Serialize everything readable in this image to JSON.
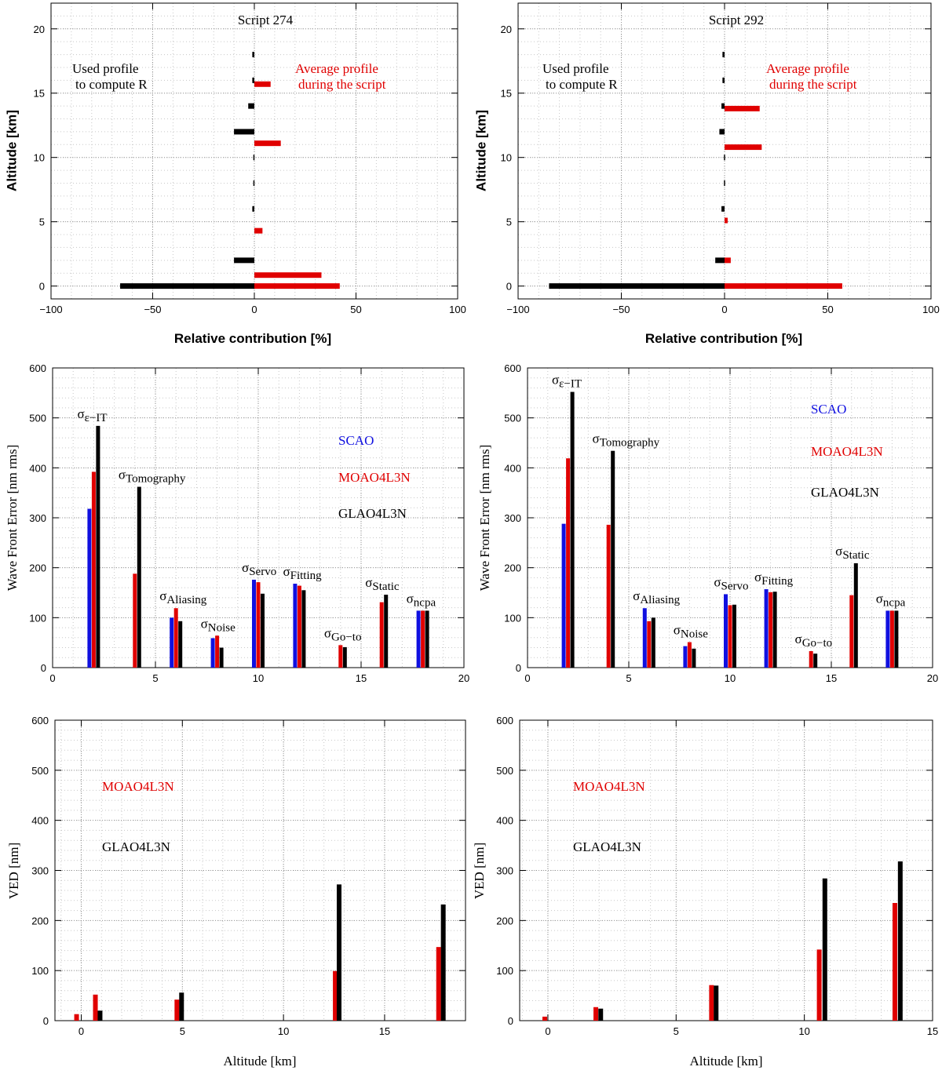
{
  "chart_data": [
    {
      "type": "hbar",
      "title": "Script 274",
      "xlabel": "Relative contribution [%]",
      "ylabel": "Altitude [km]",
      "xlim": [
        -100,
        100
      ],
      "ylim": [
        -1,
        22
      ],
      "xticks": [
        {
          "value": -100,
          "label": "−100"
        },
        {
          "value": -50,
          "label": "−50"
        },
        0,
        50,
        100
      ],
      "yticks": [
        0,
        5,
        10,
        15,
        20
      ],
      "grid": true,
      "minor_grid": {
        "x": 10,
        "y": 1
      },
      "series": [
        {
          "label": [
            "Used profile",
            "to compute R"
          ],
          "color": "#000000",
          "y": [
            0,
            2,
            6,
            8,
            10,
            12,
            14,
            16,
            18
          ],
          "values": [
            -66,
            -10,
            -1,
            -0.5,
            -0.5,
            -10,
            -3,
            -1,
            -1
          ]
        },
        {
          "label": [
            "Average profile",
            "during the script"
          ],
          "color": "#e00000",
          "y": [
            0,
            0.85,
            4.3,
            11.1,
            15.7
          ],
          "values": [
            42,
            33,
            4,
            13,
            8
          ]
        }
      ]
    },
    {
      "type": "hbar",
      "title": "Script 292",
      "xlabel": "Relative contribution [%]",
      "ylabel": "Altitude [km]",
      "xlim": [
        -100,
        100
      ],
      "ylim": [
        -1,
        22
      ],
      "xticks": [
        {
          "value": -100,
          "label": "−100"
        },
        {
          "value": -50,
          "label": "−50"
        },
        0,
        50,
        100
      ],
      "yticks": [
        0,
        5,
        10,
        15,
        20
      ],
      "grid": true,
      "minor_grid": {
        "x": 10,
        "y": 1
      },
      "series": [
        {
          "label": [
            "Used profile",
            "to compute R"
          ],
          "color": "#000000",
          "y": [
            0,
            2,
            6,
            8,
            10,
            12,
            14,
            16,
            18
          ],
          "values": [
            -85,
            -4.5,
            -1.5,
            -0.3,
            -0.3,
            -2.5,
            -1.5,
            -1,
            -1
          ]
        },
        {
          "label": [
            "Average profile",
            "during the script"
          ],
          "color": "#e00000",
          "y": [
            0,
            2,
            5.1,
            10.8,
            13.8
          ],
          "values": [
            57,
            3,
            1.5,
            18,
            17
          ]
        }
      ]
    },
    {
      "type": "bar",
      "ylabel": "Wave Front Error [nm rms]",
      "xlim": [
        0,
        20
      ],
      "ylim": [
        0,
        600
      ],
      "xticks": [
        0,
        5,
        10,
        15,
        20
      ],
      "yticks": [
        0,
        100,
        200,
        300,
        400,
        500,
        600
      ],
      "grid": true,
      "minor_grid": {
        "x": 1,
        "y": 20
      },
      "symbol": "σ",
      "group_labels": [
        "ε−IT",
        "Tomography",
        "Aliasing",
        "Noise",
        "Servo",
        "Fitting",
        "Go−to",
        "Static",
        "ncpa"
      ],
      "x": [
        2,
        4,
        6,
        8,
        10,
        12,
        14,
        16,
        18
      ],
      "series": [
        {
          "name": "SCAO",
          "color": "#1010e0",
          "values": [
            318,
            null,
            100,
            59,
            176,
            168,
            null,
            null,
            114
          ]
        },
        {
          "name": "MOAO4L3N",
          "color": "#e00000",
          "values": [
            392,
            188,
            119,
            64,
            171,
            164,
            45,
            131,
            114
          ]
        },
        {
          "name": "GLAO4L3N",
          "color": "#000000",
          "values": [
            484,
            362,
            93,
            40,
            148,
            155,
            41,
            146,
            114
          ]
        }
      ]
    },
    {
      "type": "bar",
      "ylabel": "Wave Front Error [nm rms]",
      "xlim": [
        0,
        20
      ],
      "ylim": [
        0,
        600
      ],
      "xticks": [
        0,
        5,
        10,
        15,
        20
      ],
      "yticks": [
        0,
        100,
        200,
        300,
        400,
        500,
        600
      ],
      "grid": true,
      "minor_grid": {
        "x": 1,
        "y": 20
      },
      "symbol": "σ",
      "group_labels": [
        "ε−IT",
        "Tomography",
        "Aliasing",
        "Noise",
        "Servo",
        "Fitting",
        "Go−to",
        "Static",
        "ncpa"
      ],
      "x": [
        2,
        4,
        6,
        8,
        10,
        12,
        14,
        16,
        18
      ],
      "series": [
        {
          "name": "SCAO",
          "color": "#1010e0",
          "values": [
            288,
            null,
            119,
            43,
            147,
            157,
            null,
            null,
            114
          ]
        },
        {
          "name": "MOAO4L3N",
          "color": "#e00000",
          "values": [
            419,
            286,
            93,
            51,
            125,
            151,
            33,
            145,
            114
          ]
        },
        {
          "name": "GLAO4L3N",
          "color": "#000000",
          "values": [
            552,
            434,
            100,
            38,
            126,
            152,
            28,
            209,
            114
          ]
        }
      ]
    },
    {
      "type": "bar",
      "xlabel": "Altitude [km]",
      "ylabel": "VED [nm]",
      "xlim": [
        -1.3,
        19
      ],
      "ylim": [
        0,
        600
      ],
      "xticks": [
        0,
        5,
        10,
        15
      ],
      "yticks": [
        0,
        100,
        200,
        300,
        400,
        500,
        600
      ],
      "grid": true,
      "minor_grid": {
        "x": 1,
        "y": 20
      },
      "series": [
        {
          "name": "MOAO4L3N",
          "color": "#e00000",
          "x": [
            -0.23,
            0.7,
            4.73,
            12.56,
            17.67
          ],
          "values": [
            13,
            52,
            42,
            99,
            147
          ]
        },
        {
          "name": "GLAO4L3N",
          "color": "#000000",
          "x": [
            0.93,
            4.96,
            12.75,
            17.9
          ],
          "values": [
            20,
            56,
            272,
            232
          ]
        }
      ]
    },
    {
      "type": "bar",
      "xlabel": "Altitude [km]",
      "ylabel": "VED [nm]",
      "xlim": [
        -1.1,
        15
      ],
      "ylim": [
        0,
        600
      ],
      "xticks": [
        0,
        5,
        10,
        15
      ],
      "yticks": [
        0,
        100,
        200,
        300,
        400,
        500,
        600
      ],
      "grid": true,
      "minor_grid": {
        "x": 1,
        "y": 20
      },
      "series": [
        {
          "name": "MOAO4L3N",
          "color": "#e00000",
          "x": [
            -0.12,
            1.87,
            6.38,
            10.58,
            13.53
          ],
          "values": [
            8,
            27,
            71,
            142,
            235
          ]
        },
        {
          "name": "GLAO4L3N",
          "color": "#000000",
          "x": [
            2.06,
            6.56,
            10.8,
            13.74
          ],
          "values": [
            24,
            70,
            284,
            318
          ]
        }
      ]
    }
  ]
}
